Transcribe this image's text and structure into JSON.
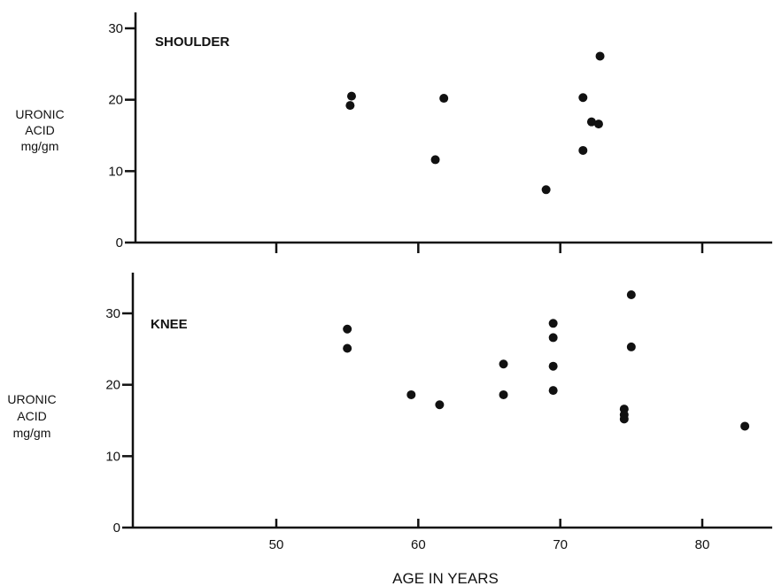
{
  "chart_data": [
    {
      "type": "scatter",
      "title": "SHOULDER",
      "ylabel_lines": [
        "URONIC",
        "ACID",
        "mg/gm"
      ],
      "xlabel": "",
      "xlim": [
        40,
        85
      ],
      "ylim": [
        0,
        32
      ],
      "yticks": [
        0,
        10,
        20,
        30
      ],
      "xticks": [
        50,
        60,
        70,
        80
      ],
      "show_x_tick_labels": false,
      "grid": false,
      "points": [
        {
          "x": 55.3,
          "y": 20.5
        },
        {
          "x": 55.2,
          "y": 19.2
        },
        {
          "x": 61.2,
          "y": 11.6
        },
        {
          "x": 61.8,
          "y": 20.2
        },
        {
          "x": 69.0,
          "y": 7.4
        },
        {
          "x": 71.6,
          "y": 20.3
        },
        {
          "x": 71.6,
          "y": 12.9
        },
        {
          "x": 72.2,
          "y": 16.9
        },
        {
          "x": 72.7,
          "y": 16.6
        },
        {
          "x": 72.8,
          "y": 26.1
        }
      ]
    },
    {
      "type": "scatter",
      "title": "KNEE",
      "ylabel_lines": [
        "URONIC",
        "ACID",
        "mg/gm"
      ],
      "xlabel": "AGE IN YEARS",
      "xlim": [
        40,
        85
      ],
      "ylim": [
        0,
        35
      ],
      "yticks": [
        0,
        10,
        20,
        30
      ],
      "xticks": [
        50,
        60,
        70,
        80
      ],
      "show_x_tick_labels": true,
      "grid": false,
      "points": [
        {
          "x": 55.0,
          "y": 27.8
        },
        {
          "x": 55.0,
          "y": 25.1
        },
        {
          "x": 59.5,
          "y": 18.6
        },
        {
          "x": 61.5,
          "y": 17.2
        },
        {
          "x": 66.0,
          "y": 22.9
        },
        {
          "x": 66.0,
          "y": 18.6
        },
        {
          "x": 69.5,
          "y": 28.6
        },
        {
          "x": 69.5,
          "y": 26.6
        },
        {
          "x": 69.5,
          "y": 22.6
        },
        {
          "x": 69.5,
          "y": 19.2
        },
        {
          "x": 74.5,
          "y": 16.6
        },
        {
          "x": 74.5,
          "y": 15.8
        },
        {
          "x": 74.5,
          "y": 15.2
        },
        {
          "x": 75.0,
          "y": 32.6
        },
        {
          "x": 75.0,
          "y": 25.3
        },
        {
          "x": 83.0,
          "y": 14.2
        }
      ]
    }
  ]
}
